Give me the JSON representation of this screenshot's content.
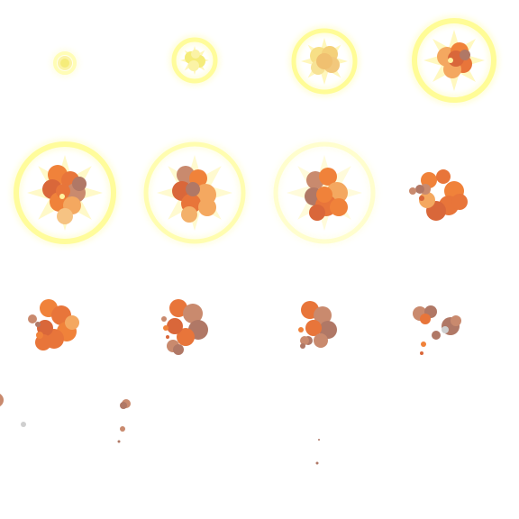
{
  "sprite_sheet": {
    "subject": "explosion-animation",
    "grid": {
      "columns": 4,
      "rows": 4
    },
    "frame_count": 14,
    "palette": {
      "glow": "#fffb8a",
      "glow_soft": "#fffde0",
      "flash_core": "#f5ec7a",
      "flash_pale": "#fbf3a6",
      "star": "#fff6b0",
      "fire_hot": "#f0823a",
      "fire_mid": "#e8753a",
      "fire_deep": "#d9673a",
      "fire_light": "#f4a860",
      "smoke": "#c98a6e",
      "smoke_dark": "#b07866",
      "smoke_grey": "#cfcfcf"
    },
    "frames": [
      {
        "id": 1,
        "phase": "spark"
      },
      {
        "id": 2,
        "phase": "flash"
      },
      {
        "id": 3,
        "phase": "flash"
      },
      {
        "id": 4,
        "phase": "ignite"
      },
      {
        "id": 5,
        "phase": "blast"
      },
      {
        "id": 6,
        "phase": "blast"
      },
      {
        "id": 7,
        "phase": "blast-fade"
      },
      {
        "id": 8,
        "phase": "fireball"
      },
      {
        "id": 9,
        "phase": "fireball"
      },
      {
        "id": 10,
        "phase": "smoke"
      },
      {
        "id": 11,
        "phase": "smoke"
      },
      {
        "id": 12,
        "phase": "dissipate"
      },
      {
        "id": 13,
        "phase": "debris"
      },
      {
        "id": 14,
        "phase": "debris"
      }
    ]
  }
}
